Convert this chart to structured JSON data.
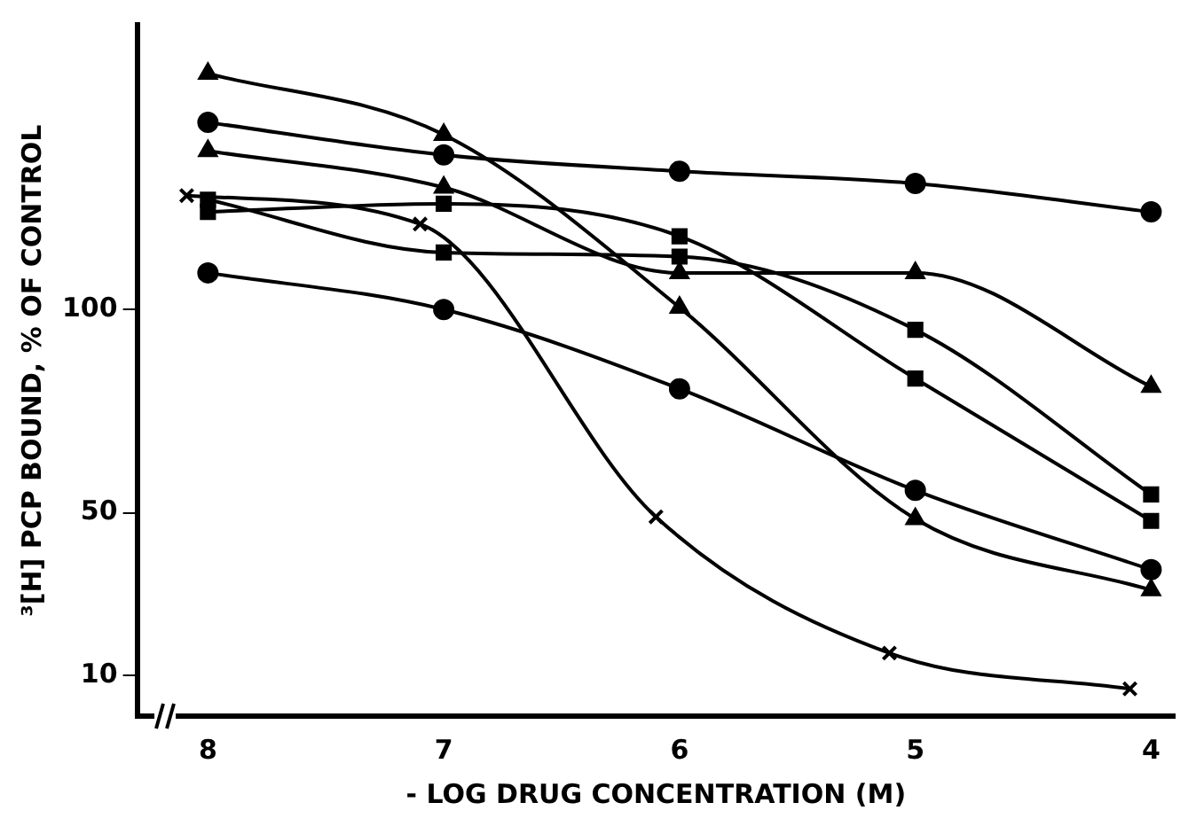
{
  "chart_data": {
    "type": "line",
    "xlabel": "- LOG DRUG CONCENTRATION (M)",
    "ylabel": "³[H] PCP BOUND, % OF CONTROL",
    "x": [
      8,
      7,
      6,
      5,
      4
    ],
    "xlim": [
      8.3,
      3.9
    ],
    "xticks": [
      8,
      7,
      6,
      5,
      4
    ],
    "ylim": [
      0,
      170
    ],
    "yticks": [
      10,
      50,
      100
    ],
    "grid": false,
    "legend": false,
    "series": [
      {
        "color": "#000000",
        "marker": "triangle",
        "values": [
          158,
          143,
          100.5,
          48.5,
          31
        ]
      },
      {
        "color": "#000000",
        "marker": "circle",
        "values": [
          146,
          138,
          134,
          131,
          124
        ]
      },
      {
        "color": "#000000",
        "marker": "triangle",
        "values": [
          139,
          130,
          109,
          109,
          81
        ]
      },
      {
        "color": "#000000",
        "marker": "square",
        "values": [
          127,
          114,
          113,
          95,
          54.5
        ]
      },
      {
        "color": "#000000",
        "marker": "square",
        "values": [
          124,
          126,
          118,
          83,
          48
        ]
      },
      {
        "color": "#000000",
        "marker": "circle",
        "values": [
          109,
          100,
          80.5,
          55.5,
          36
        ]
      },
      {
        "color": "#000000",
        "marker": "cross",
        "x": [
          8.09,
          7.1,
          6.1,
          5.11,
          4.09
        ],
        "values": [
          128,
          121,
          49,
          15.5,
          6.7
        ]
      }
    ]
  }
}
